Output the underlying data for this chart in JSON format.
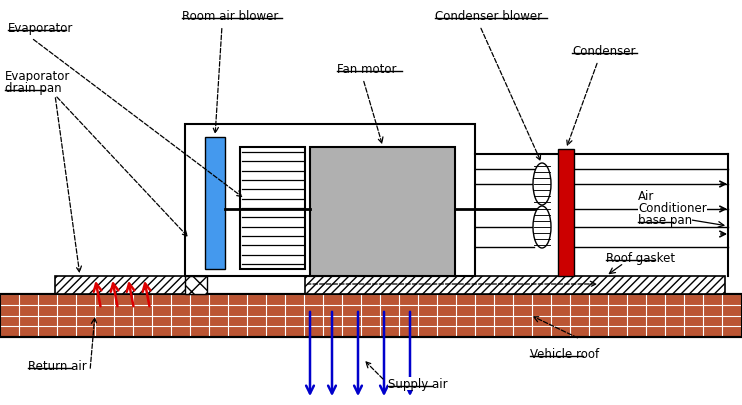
{
  "fig_width": 7.42,
  "fig_height": 4.06,
  "dpi": 100,
  "bg": "#ffffff",
  "c_blue": "#4499ee",
  "c_red": "#cc0000",
  "c_gray": "#aaaaaa",
  "c_motor_gray": "#b0b0b0",
  "c_red_arrow": "#dd0000",
  "c_blue_arrow": "#0000cc",
  "c_roof": "#bb5533",
  "labels": {
    "evaporator": "Evaporator",
    "evap_drain_1": "Evaporator",
    "evap_drain_2": "drain pan",
    "room_blower": "Room air blower",
    "fan_motor": "Fan motor",
    "cond_blower": "Condenser blower",
    "condenser": "Condenser",
    "ac_base_1": "Air",
    "ac_base_2": "Conditioner",
    "ac_base_3": "base pan",
    "roof_gasket": "Roof gasket",
    "vehicle_roof": "Vehicle roof",
    "return_air": "Return air",
    "supply_air": "Supply air"
  },
  "fs": 8.5
}
